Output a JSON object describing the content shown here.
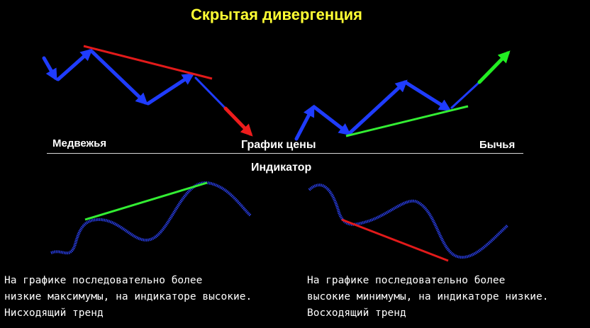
{
  "title": "Скрытая дивергенция",
  "labels": {
    "bearish": "Медвежья",
    "price_chart": "График цены",
    "bullish": "Бычья",
    "indicator": "Индикатор"
  },
  "descriptions": {
    "bearish": [
      "На графике последовательно более",
      "низкие максимумы, на индикаторе высокие.",
      "Нисходящий тренд"
    ],
    "bullish": [
      "На графике последовательно более",
      "высокие минимумы, на индикаторе низкие.",
      "Восходящий тренд"
    ]
  },
  "colors": {
    "background": "#000000",
    "title": "#ffff33",
    "price_arrows": "#1f3cff",
    "indicator_curve": "#2a3fe6",
    "trend_line_red": "#e21a1a",
    "trend_line_green": "#33ee33",
    "arrow_down": "#ee1c1c",
    "arrow_up": "#22ee22",
    "text": "#ffffff"
  }
}
